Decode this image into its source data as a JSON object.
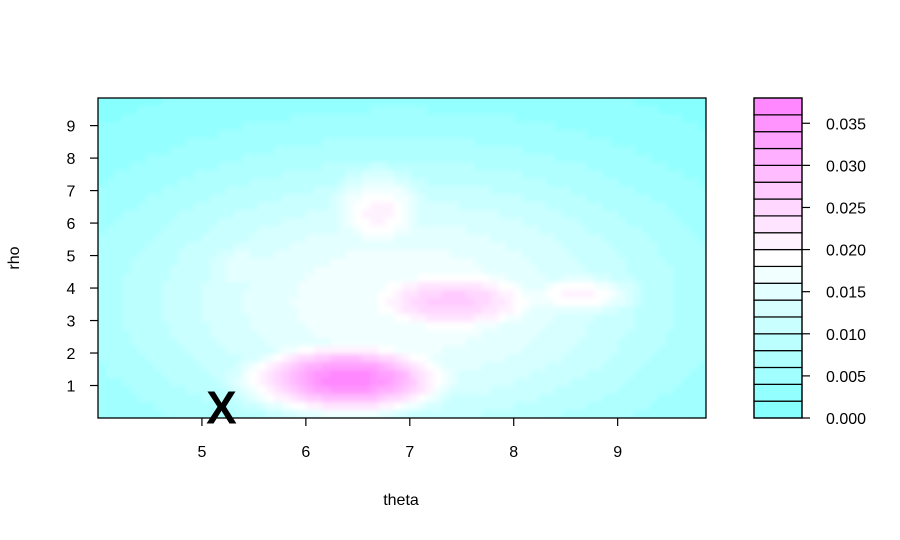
{
  "chart_data": {
    "type": "heatmap",
    "title": "",
    "xlabel": "theta",
    "ylabel": "rho",
    "xlim": [
      4.0,
      9.85
    ],
    "ylim": [
      0.0,
      9.85
    ],
    "x_ticks": [
      5,
      6,
      7,
      8,
      9
    ],
    "y_ticks": [
      1,
      2,
      3,
      4,
      5,
      6,
      7,
      8,
      9
    ],
    "x_tick_labels": [
      "5",
      "6",
      "7",
      "8",
      "9"
    ],
    "y_tick_labels": [
      "1",
      "2",
      "3",
      "4",
      "5",
      "6",
      "7",
      "8",
      "9"
    ],
    "color_low": "#80ffff",
    "color_mid": "#ffffff",
    "color_high": "#ff80ff",
    "colorbar": {
      "min": 0.0,
      "max": 0.038,
      "levels": 19,
      "ticks": [
        0.0,
        0.005,
        0.01,
        0.015,
        0.02,
        0.025,
        0.03,
        0.035
      ],
      "tick_labels": [
        "0.000",
        "0.005",
        "0.010",
        "0.015",
        "0.020",
        "0.025",
        "0.030",
        "0.035"
      ]
    },
    "density_peaks": [
      {
        "theta": 6.4,
        "rho": 1.2,
        "value": 0.038
      },
      {
        "theta": 7.4,
        "rho": 3.6,
        "value": 0.027
      },
      {
        "theta": 8.6,
        "rho": 3.8,
        "value": 0.021
      },
      {
        "theta": 6.7,
        "rho": 6.3,
        "value": 0.021
      },
      {
        "theta": 5.4,
        "rho": 4.6,
        "value": 0.016
      }
    ],
    "marker": {
      "label": "X",
      "theta": 5.15,
      "rho": 0.3
    }
  }
}
